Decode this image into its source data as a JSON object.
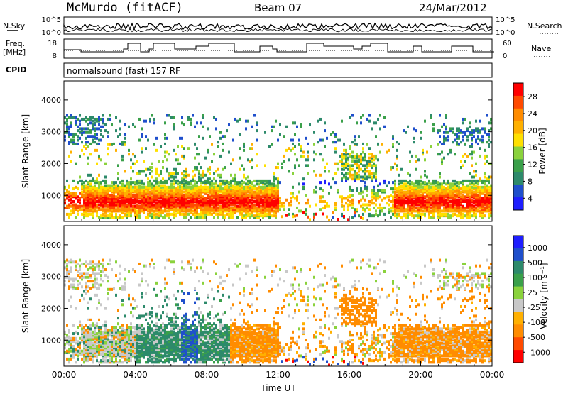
{
  "header": {
    "station": "McMurdo (fitACF)",
    "beam": "Beam 07",
    "date": "24/Mar/2012"
  },
  "noise_panel": {
    "left_label": "N.Sky",
    "right_label": "N.Search",
    "left_ticks": [
      "10^5",
      "10^0"
    ],
    "right_ticks": [
      "10^5",
      "10^0"
    ]
  },
  "freq_panel": {
    "left_label_1": "Freq.",
    "left_label_2": "[MHz]",
    "right_label": "Nave",
    "left_ticks": [
      "18",
      "8"
    ],
    "right_ticks": [
      "60",
      "0"
    ]
  },
  "cpid": {
    "label": "CPID",
    "value": "normalsound (fast) 157 RF"
  },
  "colors": {
    "red": "#ff0000",
    "orange_red": "#ff4a00",
    "orange": "#ff8c00",
    "amber": "#ffb000",
    "yellow": "#ffe000",
    "light_green": "#8ad23c",
    "green": "#3aa04a",
    "teal": "#2d8a6b",
    "blue": "#1f4fcc",
    "deep_blue": "#1e1eff",
    "grey": "#c8c8c8"
  },
  "chart_data": [
    {
      "type": "heatmap",
      "title": "",
      "xlabel": "",
      "ylabel": "Slant Range [km]",
      "xlim": [
        "00:00",
        "24:00"
      ],
      "ylim": [
        180,
        4600
      ],
      "y_ticks": [
        "4000",
        "3000",
        "2000",
        "1000"
      ],
      "colorbar": {
        "label": "Power [dB]",
        "ticks": [
          "28",
          "24",
          "20",
          "16",
          "12",
          "8",
          "4"
        ],
        "range": [
          0,
          30
        ]
      },
      "features": [
        {
          "name": "main-echo-band",
          "x_start": "00:00",
          "x_end": "12:00",
          "range_km": [
            400,
            1400
          ],
          "value": "20-30 dB"
        },
        {
          "name": "evening-echo-band",
          "x_start": "18:30",
          "x_end": "24:00",
          "range_km": [
            400,
            1400
          ],
          "value": "20-30 dB"
        },
        {
          "name": "far-range-scatter",
          "x_start": "00:00",
          "x_end": "24:00",
          "range_km": [
            2600,
            3500
          ],
          "value": "4-12 dB"
        }
      ]
    },
    {
      "type": "heatmap",
      "title": "",
      "xlabel": "Time UT",
      "ylabel": "Slant Range [km]",
      "xlim": [
        "00:00",
        "24:00"
      ],
      "ylim": [
        180,
        4600
      ],
      "x_ticks": [
        "00:00",
        "04:00",
        "08:00",
        "12:00",
        "16:00",
        "20:00",
        "00:00"
      ],
      "y_ticks": [
        "4000",
        "3000",
        "2000",
        "1000"
      ],
      "colorbar": {
        "label": "Velocity [m s⁻¹]",
        "ticks": [
          "1000",
          "500",
          "100",
          "25",
          "-25",
          "-100",
          "-500",
          "-1000"
        ],
        "range": [
          -1000,
          1000
        ]
      },
      "features": [
        {
          "name": "mixed-velocity",
          "x_start": "00:00",
          "x_end": "04:00",
          "range_km": [
            400,
            1400
          ],
          "value": "-100 to 100 m/s"
        },
        {
          "name": "toward-flow",
          "x_start": "04:00",
          "x_end": "09:00",
          "range_km": [
            400,
            1400
          ],
          "value": "100 to 1000 m/s"
        },
        {
          "name": "away-flow",
          "x_start": "09:00",
          "x_end": "12:00",
          "range_km": [
            400,
            1400
          ],
          "value": "-100 to -500 m/s"
        },
        {
          "name": "evening-away-flow",
          "x_start": "18:30",
          "x_end": "24:00",
          "range_km": [
            400,
            1400
          ],
          "value": "-100 to -500 m/s"
        }
      ]
    }
  ]
}
